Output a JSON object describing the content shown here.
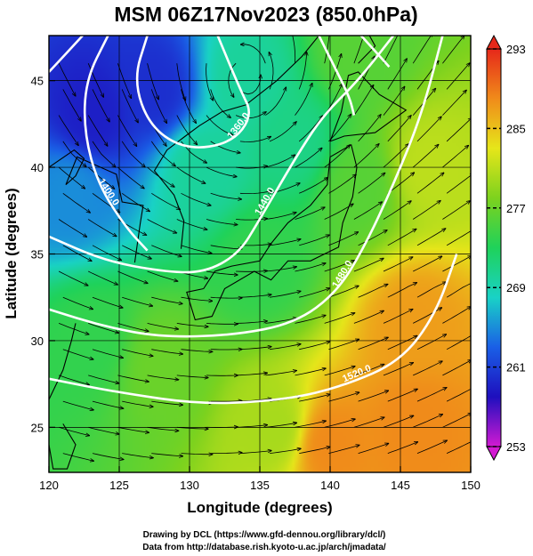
{
  "chart_data": {
    "type": "heatmap",
    "title": "MSM 06Z17Nov2023 (850.0hPa)",
    "xlabel": "Longitude (degrees)",
    "ylabel": "Latitude  (degrees)",
    "xlim": [
      120,
      150
    ],
    "ylim": [
      22.4,
      47.6
    ],
    "x_ticks": [
      120,
      125,
      130,
      135,
      140,
      145,
      150
    ],
    "y_ticks": [
      25,
      30,
      35,
      40,
      45
    ],
    "grid": true,
    "colorbar": {
      "range": [
        253,
        293
      ],
      "ticks": [
        253,
        261,
        269,
        277,
        285,
        293
      ],
      "placement": "right"
    },
    "temperature_field": [
      {
        "lon": 123,
        "lat": 43,
        "value": 259
      },
      {
        "lon": 127.5,
        "lat": 44.5,
        "value": 260
      },
      {
        "lon": 121.5,
        "lat": 38.5,
        "value": 265
      },
      {
        "lon": 134,
        "lat": 45,
        "value": 270
      },
      {
        "lon": 137.5,
        "lat": 41.5,
        "value": 271
      },
      {
        "lon": 131,
        "lat": 40,
        "value": 270
      },
      {
        "lon": 142,
        "lat": 46.5,
        "value": 276
      },
      {
        "lon": 142,
        "lat": 39,
        "value": 276
      },
      {
        "lon": 135,
        "lat": 34.5,
        "value": 274
      },
      {
        "lon": 123,
        "lat": 30,
        "value": 274
      },
      {
        "lon": 128,
        "lat": 28.5,
        "value": 277
      },
      {
        "lon": 136,
        "lat": 25,
        "value": 280
      },
      {
        "lon": 147,
        "lat": 40,
        "value": 281
      },
      {
        "lon": 146,
        "lat": 31,
        "value": 287
      },
      {
        "lon": 146,
        "lat": 25,
        "value": 288
      },
      {
        "lon": 140,
        "lat": 24,
        "value": 288
      }
    ],
    "contours": [
      {
        "label": "1400.0",
        "points": [
          [
            124.2,
            47.6
          ],
          [
            122.6,
            45
          ],
          [
            122.5,
            42
          ],
          [
            123.5,
            39
          ],
          [
            125.5,
            36.5
          ],
          [
            127,
            35.2
          ]
        ]
      },
      {
        "label": "1360.0",
        "points": [
          [
            127,
            47.6
          ],
          [
            126,
            45
          ],
          [
            127.2,
            42.3
          ],
          [
            129.8,
            41
          ],
          [
            133,
            41.4
          ],
          [
            134.5,
            43
          ],
          [
            133.6,
            44.5
          ],
          [
            132,
            47.6
          ]
        ]
      },
      {
        "label": "1360.0",
        "points": [
          [
            122.4,
            47.6
          ],
          [
            120,
            45.5
          ]
        ]
      },
      {
        "label": "1440.0",
        "points": [
          [
            120,
            36
          ],
          [
            124,
            34.6
          ],
          [
            128,
            34
          ],
          [
            131,
            33.9
          ],
          [
            133.5,
            35
          ],
          [
            135,
            37
          ],
          [
            137.5,
            40.5
          ],
          [
            139.5,
            43
          ],
          [
            142,
            45
          ],
          [
            144.5,
            47.6
          ]
        ]
      },
      {
        "label": "1480.0",
        "points": [
          [
            120,
            31.8
          ],
          [
            124,
            30.8
          ],
          [
            128,
            30.2
          ],
          [
            133,
            30.3
          ],
          [
            137.5,
            31
          ],
          [
            140.5,
            32.8
          ],
          [
            142.5,
            35.5
          ],
          [
            144.5,
            39
          ],
          [
            146.5,
            43
          ],
          [
            148,
            47.6
          ]
        ]
      },
      {
        "label": "1520.0",
        "points": [
          [
            120,
            27.8
          ],
          [
            125,
            27
          ],
          [
            131,
            26.3
          ],
          [
            137,
            26.6
          ],
          [
            141,
            27.4
          ],
          [
            145,
            28.8
          ],
          [
            147.5,
            31.5
          ],
          [
            149,
            35
          ]
        ]
      },
      {
        "label": "",
        "points": [
          [
            139.2,
            47.6
          ],
          [
            140.5,
            45.5
          ],
          [
            141.4,
            44
          ],
          [
            141.7,
            43
          ]
        ]
      },
      {
        "label": "",
        "points": [
          [
            142.2,
            47.6
          ],
          [
            144.2,
            45.8
          ]
        ]
      }
    ]
  },
  "figure_text": {
    "credit_line1": "Drawing by DCL (https://www.gfd-dennou.org/library/dcl/)",
    "credit_line2": "Data from http://database.rish.kyoto-u.ac.jp/arch/jmadata/"
  },
  "colors": {
    "colorbar_stops": [
      "#d21ad2",
      "#1e0fbe",
      "#1a5fe6",
      "#19d2c6",
      "#1fd25a",
      "#7dd21e",
      "#e6e61a",
      "#f08b1a",
      "#e6281a"
    ],
    "contour": "#ffffff",
    "streamline": "#000000",
    "coastline": "#000000"
  }
}
